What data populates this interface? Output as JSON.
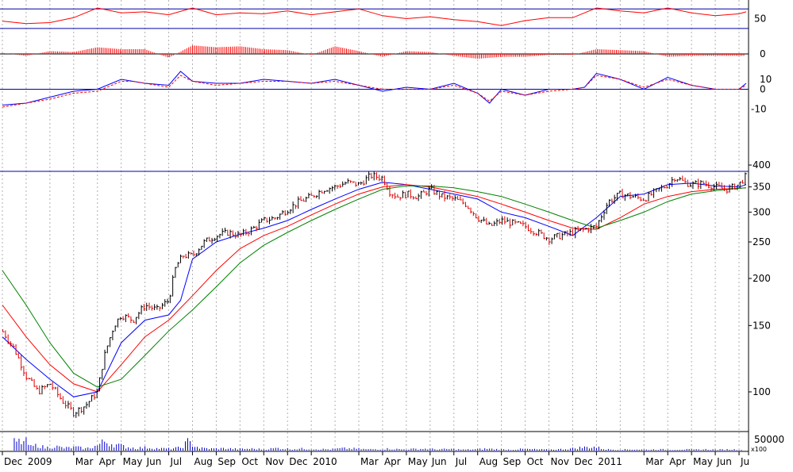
{
  "chart_data": {
    "type": "line",
    "price_axis": {
      "scale": "log",
      "ylim": [
        80,
        420
      ],
      "ticks": [
        {
          "label": "400",
          "value": 400
        },
        {
          "label": "350",
          "value": 350
        },
        {
          "label": "300",
          "value": 300
        },
        {
          "label": "250",
          "value": 250
        },
        {
          "label": "200",
          "value": 200
        },
        {
          "label": "150",
          "value": 150
        },
        {
          "label": "100",
          "value": 100
        }
      ],
      "reference_line": 385
    },
    "x_axis": {
      "labels": [
        "Dec",
        "2009",
        "Mar",
        "Apr",
        "May",
        "Jun",
        "Jul",
        "Aug",
        "Sep",
        "Oct",
        "Nov",
        "Dec",
        "2010",
        "Mar",
        "Apr",
        "May",
        "Jun",
        "Jul",
        "Aug",
        "Sep",
        "Oct",
        "Nov",
        "Dec",
        "2011",
        "Mar",
        "Apr",
        "May",
        "Jun",
        "Ju"
      ],
      "month_index": [
        0,
        1,
        3,
        4,
        5,
        6,
        7,
        8,
        9,
        10,
        11,
        12,
        13,
        15,
        16,
        17,
        18,
        19,
        20,
        21,
        22,
        23,
        24,
        25,
        27,
        28,
        29,
        30,
        31
      ],
      "month_range": [
        -0.1,
        31.4
      ]
    },
    "series": [
      {
        "color": "#000000",
        "style": "ohlc",
        "x": [
          0,
          0.5,
          1,
          1.5,
          2,
          2.5,
          3,
          3.5,
          4,
          4.3,
          4.7,
          5,
          5.5,
          6,
          6.5,
          7,
          7.3,
          7.6,
          8,
          8.5,
          9,
          9.5,
          10,
          10.5,
          11,
          11.5,
          12,
          12.5,
          13,
          13.5,
          14,
          14.5,
          15,
          15.5,
          16,
          16.3,
          16.6,
          17,
          17.5,
          18,
          18.5,
          19,
          19.5,
          20,
          20.5,
          21,
          21.5,
          22,
          22.5,
          23,
          23.5,
          24,
          24.5,
          25,
          25.5,
          26,
          26.5,
          27,
          27.5,
          28,
          28.3,
          28.7,
          29,
          29.5,
          30,
          30.5,
          31,
          31.3
        ],
        "values": [
          145,
          130,
          110,
          100,
          105,
          95,
          88,
          92,
          100,
          125,
          150,
          160,
          155,
          170,
          165,
          175,
          215,
          230,
          230,
          250,
          260,
          265,
          260,
          270,
          285,
          290,
          305,
          320,
          330,
          345,
          350,
          360,
          355,
          375,
          370,
          340,
          330,
          335,
          330,
          345,
          330,
          325,
          315,
          290,
          275,
          285,
          280,
          275,
          265,
          255,
          260,
          265,
          270,
          275,
          320,
          335,
          330,
          325,
          340,
          355,
          372,
          360,
          355,
          358,
          350,
          345,
          355,
          375
        ]
      },
      {
        "color": "#0000ff",
        "style": "line",
        "x": [
          0,
          1,
          2,
          3,
          4,
          5,
          6,
          7,
          7.5,
          8,
          9,
          10,
          11,
          12,
          13,
          14,
          15,
          16,
          17,
          18,
          19,
          20,
          21,
          22,
          23,
          24,
          25,
          26,
          27,
          28,
          29,
          30,
          31,
          31.3
        ],
        "values": [
          140,
          122,
          108,
          97,
          100,
          135,
          155,
          160,
          175,
          225,
          250,
          262,
          272,
          285,
          305,
          325,
          345,
          360,
          355,
          345,
          335,
          325,
          300,
          290,
          275,
          260,
          290,
          330,
          335,
          355,
          358,
          352,
          350,
          355
        ]
      },
      {
        "color": "#ff0000",
        "style": "line",
        "x": [
          0,
          1,
          2,
          3,
          4,
          5,
          6,
          7,
          8,
          9,
          10,
          11,
          12,
          13,
          14,
          15,
          16,
          17,
          18,
          19,
          20,
          21,
          22,
          23,
          24,
          25,
          26,
          27,
          28,
          29,
          30,
          31,
          31.3
        ],
        "values": [
          170,
          140,
          118,
          105,
          100,
          118,
          140,
          155,
          180,
          210,
          240,
          260,
          275,
          295,
          315,
          335,
          350,
          355,
          350,
          340,
          330,
          315,
          300,
          285,
          272,
          270,
          290,
          315,
          330,
          340,
          345,
          347,
          348
        ]
      },
      {
        "color": "#008000",
        "style": "line",
        "x": [
          0,
          1,
          2,
          3,
          4,
          5,
          6,
          7,
          8,
          9,
          10,
          11,
          12,
          13,
          14,
          15,
          16,
          17,
          18,
          19,
          20,
          21,
          22,
          23,
          24,
          25,
          26,
          27,
          28,
          29,
          30,
          31,
          31.3
        ],
        "values": [
          210,
          170,
          135,
          112,
          103,
          108,
          125,
          145,
          165,
          190,
          220,
          245,
          265,
          285,
          305,
          325,
          345,
          352,
          352,
          348,
          340,
          330,
          315,
          300,
          285,
          272,
          285,
          300,
          320,
          335,
          342,
          347,
          348
        ]
      }
    ],
    "indicators": {
      "rsi": {
        "tick_label": "50",
        "range": [
          20,
          85
        ],
        "level": 50,
        "upper_line": 70,
        "lower_line": 30,
        "x": [
          0,
          1,
          2,
          3,
          4,
          5,
          6,
          7,
          8,
          9,
          10,
          11,
          12,
          13,
          14,
          15,
          16,
          17,
          18,
          19,
          20,
          21,
          22,
          23,
          24,
          25,
          26,
          27,
          28,
          29,
          30,
          31,
          31.3
        ],
        "values": [
          45,
          40,
          42,
          52,
          72,
          62,
          64,
          58,
          72,
          58,
          62,
          60,
          66,
          58,
          64,
          70,
          56,
          50,
          54,
          48,
          44,
          36,
          46,
          52,
          52,
          72,
          66,
          62,
          72,
          62,
          56,
          60,
          64
        ]
      },
      "histogram": {
        "tick_label": "0",
        "range": [
          -1,
          1
        ],
        "x": [
          0,
          1,
          2,
          3,
          4,
          5,
          6,
          7,
          8,
          9,
          10,
          11,
          12,
          13,
          14,
          15,
          16,
          17,
          18,
          19,
          20,
          21,
          22,
          23,
          24,
          25,
          26,
          27,
          28,
          29,
          30,
          31,
          31.3
        ],
        "values": [
          0.1,
          -0.2,
          0.3,
          0.2,
          0.7,
          0.5,
          0.5,
          -0.4,
          0.9,
          0.7,
          0.8,
          0.5,
          0.4,
          -0.1,
          0.8,
          0.3,
          -0.3,
          0.3,
          0.2,
          -0.2,
          -0.5,
          -0.3,
          -0.3,
          -0.1,
          -0.1,
          0.5,
          0.4,
          0.3,
          -0.3,
          -0.2,
          -0.2,
          -0.2,
          -0.2
        ]
      },
      "momentum": {
        "range": [
          -14,
          14
        ],
        "ticks": [
          {
            "label": "10",
            "value": 10
          },
          {
            "label": "0",
            "value": 5
          },
          {
            "label": "-10",
            "value": -5
          }
        ],
        "zero_line": 5,
        "x": [
          0,
          1,
          2,
          3,
          4,
          5,
          5.5,
          6,
          7,
          7.5,
          8,
          9,
          10,
          11,
          12,
          13,
          14,
          15,
          16,
          17,
          18,
          19,
          20,
          20.5,
          21,
          22,
          23,
          24,
          24.5,
          25,
          26,
          27,
          28,
          29,
          30,
          31,
          31.3
        ],
        "series": [
          {
            "color": "#0000ff",
            "values": [
              -3,
              -2,
              1,
              4,
              5,
              10,
              9,
              8,
              7,
              14,
              9,
              8,
              8,
              10,
              9,
              8,
              10,
              7,
              4,
              6,
              5,
              8,
              3,
              -2,
              5,
              2,
              5,
              5,
              6,
              13,
              10,
              5,
              11,
              7,
              5,
              5,
              8
            ]
          },
          {
            "color": "#ff0000",
            "values": [
              -4,
              -2,
              0,
              3,
              4,
              9,
              9,
              8,
              6,
              12,
              9,
              7,
              8,
              9,
              9,
              8,
              9,
              7,
              5,
              5,
              5,
              7,
              3,
              -1,
              4,
              2,
              4,
              5,
              6,
              12,
              10,
              6,
              10,
              7,
              5,
              5,
              7
            ]
          }
        ]
      },
      "volume": {
        "tick_label": "50000",
        "unit_label": "x100",
        "x": [
          1.0,
          1.2,
          1.5,
          1.8,
          2.2,
          2.6,
          3.1,
          3.5,
          4.0,
          4.3,
          4.7,
          5.2,
          5.6,
          6.1,
          6.5,
          7.0,
          7.5,
          7.8,
          8.3,
          8.8,
          9.4,
          9.9,
          10.5,
          11.0,
          11.6,
          12.1,
          12.6,
          13.2,
          13.8,
          14.3,
          14.9,
          15.4,
          15.9,
          16.3,
          16.8,
          17.3,
          17.8,
          18.3,
          18.9,
          19.4,
          19.9,
          20.4,
          20.9,
          21.4,
          21.9,
          22.4,
          22.9,
          23.4,
          23.9,
          24.4,
          24.9,
          25.4,
          25.9,
          26.5,
          27.1,
          27.6,
          28.1,
          28.6,
          29.1,
          29.6,
          30.1,
          30.6,
          31.1
        ],
        "values": [
          28000,
          12000,
          18000,
          9000,
          14000,
          8000,
          11000,
          6000,
          16000,
          30000,
          20000,
          12000,
          8000,
          10000,
          7000,
          6000,
          9000,
          28000,
          8000,
          6000,
          7000,
          5000,
          6000,
          4000,
          8000,
          5000,
          6000,
          5000,
          4000,
          7000,
          6000,
          4000,
          5000,
          6000,
          4000,
          5000,
          6000,
          4000,
          5000,
          3000,
          4000,
          6000,
          4000,
          3000,
          5000,
          4000,
          3000,
          4000,
          6000,
          10000,
          12000,
          4000,
          3000,
          4000,
          3000,
          4000,
          3000,
          4000,
          3000,
          4000,
          3000,
          4000,
          3000
        ]
      }
    }
  }
}
